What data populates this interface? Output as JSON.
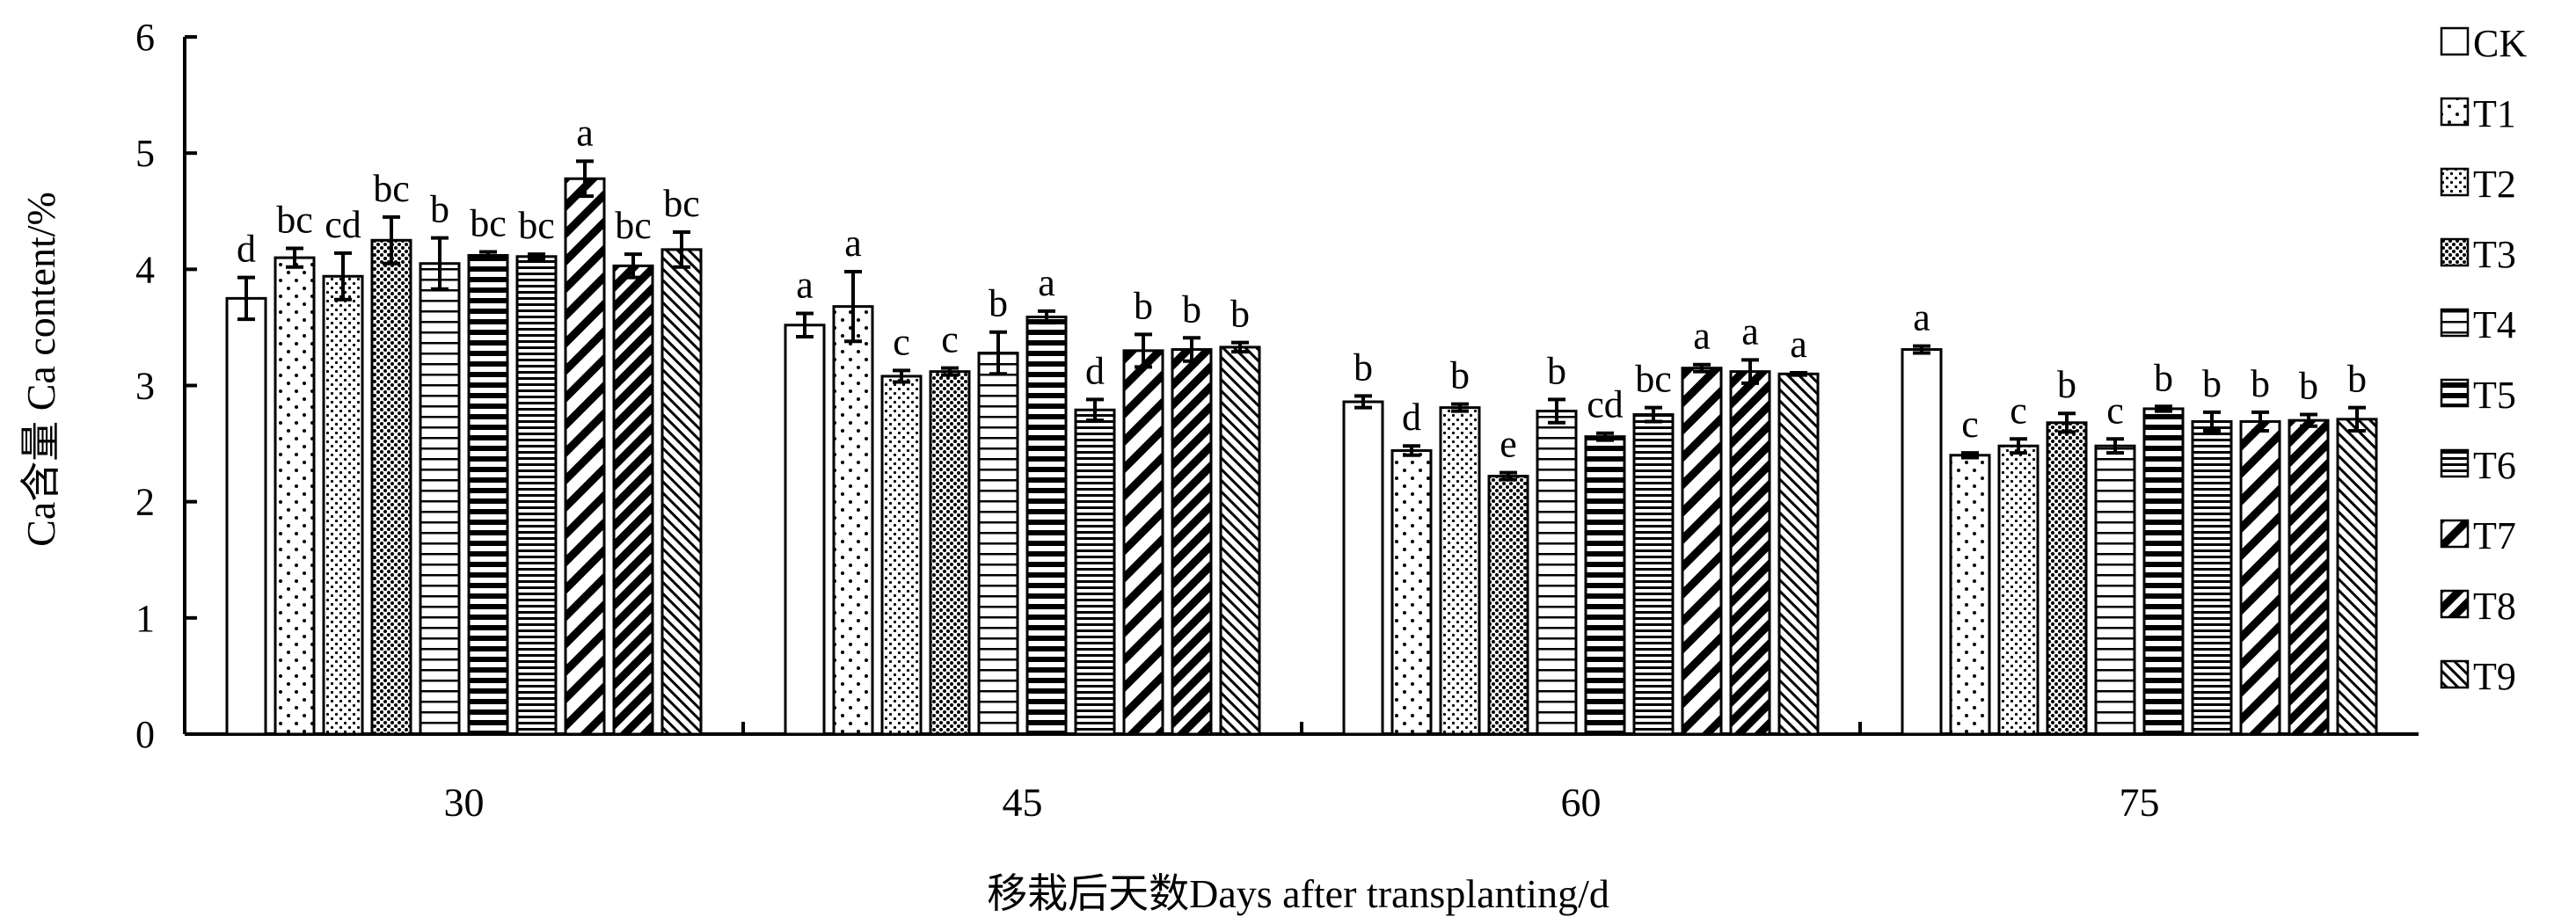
{
  "chart_data": {
    "type": "bar",
    "xlabel": "移栽后天数Days after transplanting/d",
    "ylabel": "Ca含量 Ca content/%",
    "ylim": [
      0,
      6
    ],
    "yticks": [
      "0",
      "1",
      "2",
      "3",
      "4",
      "5",
      "6"
    ],
    "categories": [
      "30",
      "45",
      "60",
      "75"
    ],
    "legend_position": "right",
    "series": [
      {
        "name": "CK",
        "pattern": "blank",
        "values": [
          3.75,
          3.52,
          2.86,
          3.31
        ],
        "errors": [
          0.18,
          0.1,
          0.05,
          0.03
        ],
        "letters": [
          "d",
          "a",
          "b",
          "a"
        ]
      },
      {
        "name": "T1",
        "pattern": "dots",
        "values": [
          4.1,
          3.68,
          2.44,
          2.4
        ],
        "errors": [
          0.08,
          0.3,
          0.04,
          0.02
        ],
        "letters": [
          "bc",
          "a",
          "d",
          "c"
        ]
      },
      {
        "name": "T2",
        "pattern": "dots-dense",
        "values": [
          3.94,
          3.08,
          2.81,
          2.48
        ],
        "errors": [
          0.2,
          0.05,
          0.03,
          0.06
        ],
        "letters": [
          "cd",
          "c",
          "b",
          "c"
        ]
      },
      {
        "name": "T3",
        "pattern": "dots-heavy",
        "values": [
          4.25,
          3.12,
          2.22,
          2.68
        ],
        "errors": [
          0.2,
          0.03,
          0.03,
          0.08
        ],
        "letters": [
          "bc",
          "c",
          "e",
          "b"
        ]
      },
      {
        "name": "T4",
        "pattern": "hlines",
        "values": [
          4.05,
          3.28,
          2.78,
          2.48
        ],
        "errors": [
          0.22,
          0.18,
          0.1,
          0.06
        ],
        "letters": [
          "b",
          "b",
          "b",
          "c"
        ]
      },
      {
        "name": "T5",
        "pattern": "hlines-bold",
        "values": [
          4.12,
          3.59,
          2.56,
          2.8
        ],
        "errors": [
          0.03,
          0.05,
          0.03,
          0.02
        ],
        "letters": [
          "bc",
          "a",
          "cd",
          "b"
        ]
      },
      {
        "name": "T6",
        "pattern": "hlines-dense",
        "values": [
          4.11,
          2.79,
          2.75,
          2.69
        ],
        "errors": [
          0.02,
          0.09,
          0.06,
          0.08
        ],
        "letters": [
          "bc",
          "d",
          "bc",
          "b"
        ]
      },
      {
        "name": "T7",
        "pattern": "diag-down",
        "values": [
          4.78,
          3.3,
          3.15,
          2.69
        ],
        "errors": [
          0.15,
          0.14,
          0.03,
          0.08
        ],
        "letters": [
          "a",
          "b",
          "a",
          "b"
        ]
      },
      {
        "name": "T8",
        "pattern": "diag-down-bold",
        "values": [
          4.03,
          3.31,
          3.12,
          2.7
        ],
        "errors": [
          0.1,
          0.1,
          0.1,
          0.05
        ],
        "letters": [
          "bc",
          "b",
          "a",
          "b"
        ]
      },
      {
        "name": "T9",
        "pattern": "diag-up",
        "values": [
          4.17,
          3.33,
          3.1,
          2.71
        ],
        "errors": [
          0.15,
          0.04,
          0.01,
          0.1
        ],
        "letters": [
          "bc",
          "b",
          "a",
          "b"
        ]
      }
    ]
  }
}
